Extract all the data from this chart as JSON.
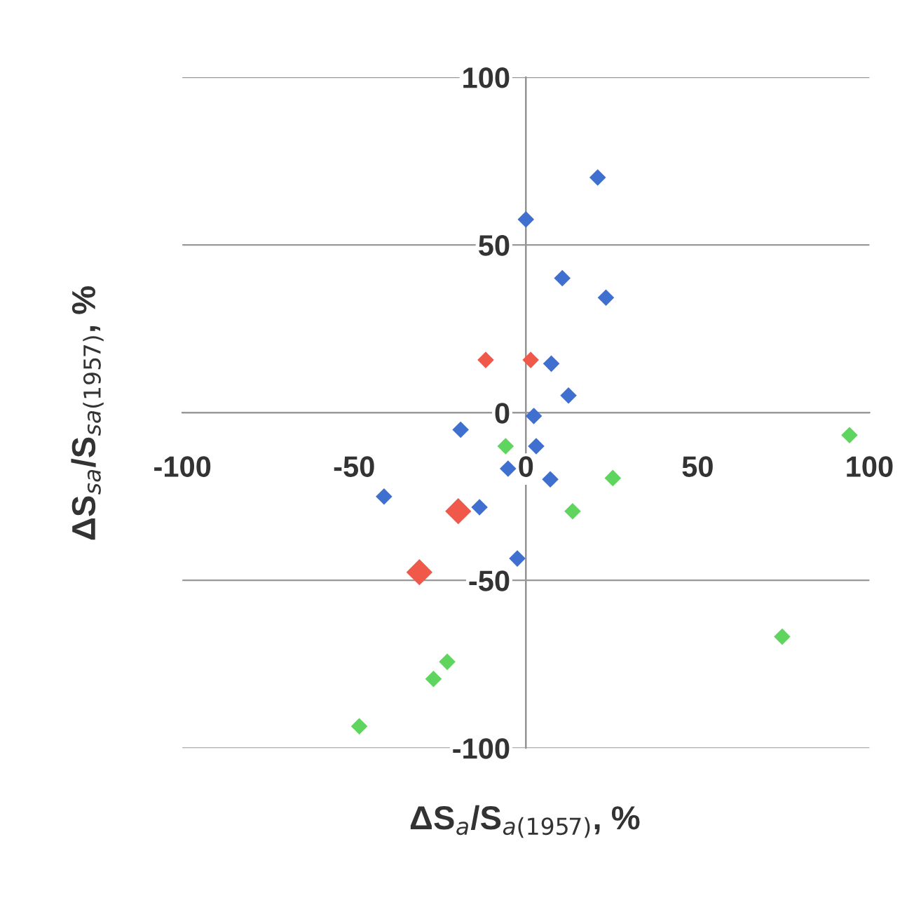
{
  "chart_data": {
    "type": "scatter",
    "xlabel": "ΔS$_{a}$/S$_{a(1957)}$, %",
    "ylabel": "ΔS$_{sa}$/S$_{sa(1957)}$, %",
    "xlim": [
      -100,
      100
    ],
    "xticks": [
      -100,
      -50,
      0,
      50,
      100
    ],
    "ylim": [
      -100,
      100
    ],
    "yticks": [
      -100,
      -50,
      0,
      50,
      100
    ],
    "grid": "y",
    "legend": false,
    "marker": "diamond",
    "series": [
      {
        "color": "#3f6fcf",
        "x": [
          20.9,
          0,
          10.6,
          23.3,
          7.4,
          12.4,
          2.3,
          -19,
          3,
          -5.2,
          7.1,
          -41.3,
          -13.5,
          -2.5
        ],
        "values": [
          70.1,
          57.6,
          40.1,
          34.3,
          14.6,
          5.1,
          -1,
          -5.1,
          -10,
          -16.7,
          -19.9,
          -25,
          -28.2,
          -43.5
        ]
      },
      {
        "color": "#5fd45f",
        "x": [
          94.2,
          -5.9,
          25.3,
          13.6,
          74.6,
          -22.9,
          -26.9,
          -48.5
        ],
        "values": [
          -6.7,
          -10,
          -19.5,
          -29.4,
          -66.8,
          -74.3,
          -79.4,
          -93.5
        ]
      },
      {
        "color": "#f0584a",
        "x": [
          -11.7,
          1.4
        ],
        "values": [
          15.7,
          15.7
        ]
      },
      {
        "color": "#f0584a",
        "x": [
          -19.7,
          -31
        ],
        "values": [
          -29.4,
          -47.6
        ]
      }
    ]
  }
}
